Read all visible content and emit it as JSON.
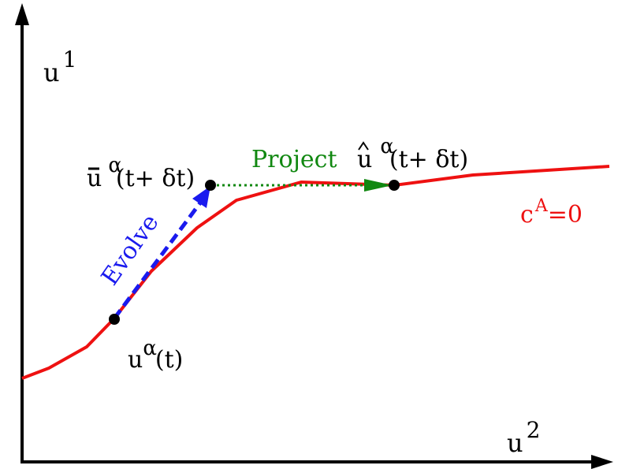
{
  "axes": {
    "y_label": "u",
    "y_label_sup": "1",
    "x_label": "u",
    "x_label_sup": "2"
  },
  "constraint": {
    "label": "c",
    "label_sup": "A",
    "label_suffix": "=0",
    "color": "#ee1111"
  },
  "points": {
    "start": {
      "base": "u",
      "sup": "α",
      "suffix": "(t)"
    },
    "evolved": {
      "base": "u",
      "sup": "α",
      "suffix": "(t+ δt)"
    },
    "projected": {
      "base": "u",
      "sup": "α",
      "suffix": "(t+ δt)"
    }
  },
  "steps": {
    "evolve": {
      "label": "Evolve",
      "color": "#1a1aee"
    },
    "project": {
      "label": "Project",
      "color": "#118811"
    }
  },
  "colors": {
    "axis": "#000000",
    "point": "#000000"
  }
}
